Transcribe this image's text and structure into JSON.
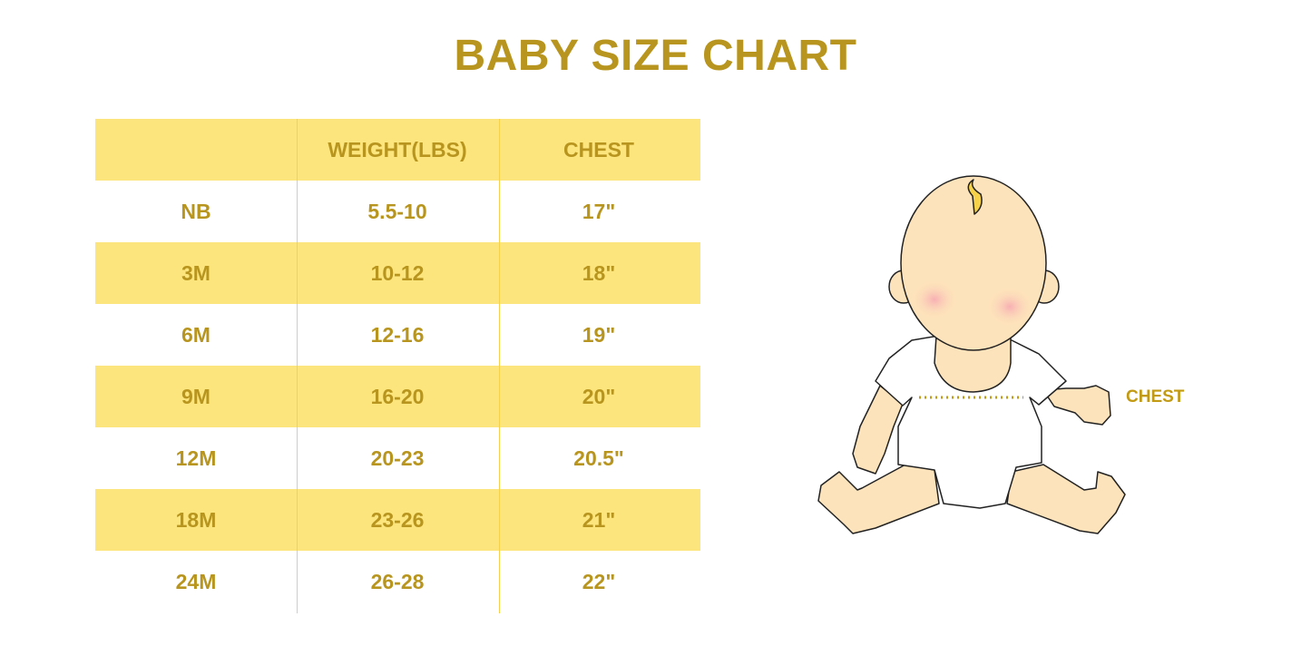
{
  "title": "BABY SIZE CHART",
  "table": {
    "headers": [
      "",
      "WEIGHT(LBS)",
      "CHEST"
    ],
    "rows": [
      [
        "NB",
        "5.5-10",
        "17\""
      ],
      [
        "3M",
        "10-12",
        "18\""
      ],
      [
        "6M",
        "12-16",
        "19\""
      ],
      [
        "9M",
        "16-20",
        "20\""
      ],
      [
        "12M",
        "20-23",
        "20.5\""
      ],
      [
        "18M",
        "23-26",
        "21\""
      ],
      [
        "24M",
        "26-28",
        "22\""
      ]
    ]
  },
  "illustration": {
    "chest_label": "CHEST"
  },
  "colors": {
    "accent_text": "#b8951e",
    "row_highlight": "#fce57c",
    "skin": "#fde3bb",
    "cheek": "#f7b3b8",
    "hair": "#f5d24a"
  }
}
